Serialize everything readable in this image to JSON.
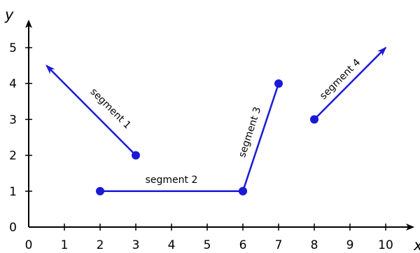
{
  "chart_data": {
    "type": "line",
    "xlabel": "x",
    "ylabel": "y",
    "xlim": [
      0,
      10
    ],
    "ylim": [
      0,
      5
    ],
    "xticks": [
      "0",
      "1",
      "2",
      "3",
      "4",
      "5",
      "6",
      "7",
      "8",
      "9",
      "10"
    ],
    "yticks": [
      "0",
      "1",
      "2",
      "3",
      "4",
      "5"
    ],
    "grid": false,
    "line_color": "#1a1ad6",
    "series": [
      {
        "name": "segment 1",
        "start": [
          3,
          2
        ],
        "end": [
          0.5,
          4.5
        ],
        "start_marker": "dot",
        "end_marker": "arrow"
      },
      {
        "name": "segment 2",
        "start": [
          2,
          1
        ],
        "end": [
          6,
          1
        ],
        "start_marker": "dot",
        "end_marker": "dot"
      },
      {
        "name": "segment 3",
        "start": [
          6,
          1
        ],
        "end": [
          7,
          4
        ],
        "start_marker": "dot",
        "end_marker": "dot"
      },
      {
        "name": "segment 4",
        "start": [
          8,
          3
        ],
        "end": [
          10,
          5
        ],
        "start_marker": "dot",
        "end_marker": "arrow"
      }
    ]
  }
}
